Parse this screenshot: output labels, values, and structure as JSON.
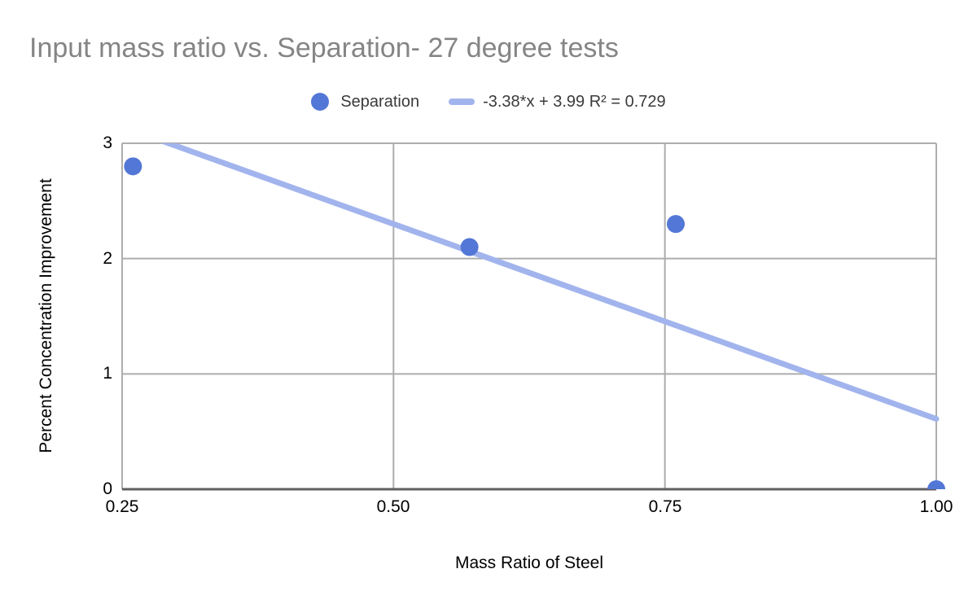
{
  "chart_data": {
    "type": "scatter",
    "title": "Input mass ratio vs. Separation- 27 degree tests",
    "xlabel": "Mass Ratio of Steel",
    "ylabel": "Percent Concentration Improvement",
    "xlim": [
      0.25,
      1.0
    ],
    "ylim": [
      0,
      3
    ],
    "x_ticks": [
      0.25,
      0.5,
      0.75,
      1.0
    ],
    "x_tick_labels": [
      "0.25",
      "0.50",
      "0.75",
      "1.00"
    ],
    "y_ticks": [
      0,
      1,
      2,
      3
    ],
    "y_tick_labels": [
      "0",
      "1",
      "2",
      "3"
    ],
    "grid": true,
    "legend_position": "top",
    "series": [
      {
        "name": "Separation",
        "points": [
          {
            "x": 0.26,
            "y": 2.8
          },
          {
            "x": 0.57,
            "y": 2.1
          },
          {
            "x": 0.76,
            "y": 2.3
          },
          {
            "x": 1.0,
            "y": 0.0
          }
        ]
      }
    ],
    "trendline": {
      "type": "linear",
      "slope": -3.38,
      "intercept": 3.99,
      "r2": 0.729,
      "label": "-3.38*x + 3.99 R² = 0.729"
    },
    "colors": {
      "point": "#5377d6",
      "trendline": "#a2b4ed",
      "gridline": "#adadad",
      "axis_line": "#5f5f5f",
      "title_text": "#858585",
      "legend_text": "#3b3b3b",
      "tick_text": "#000000"
    }
  }
}
